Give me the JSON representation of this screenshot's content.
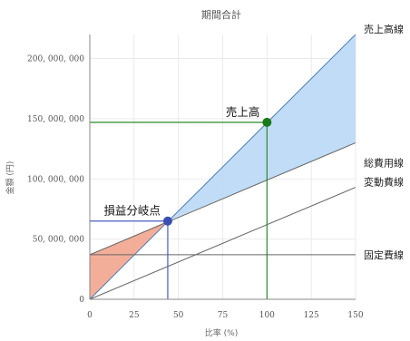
{
  "chart_data": {
    "type": "line",
    "title": "期間合計",
    "xlabel": "比率 (%)",
    "ylabel": "金額 (円)",
    "xlim": [
      0,
      150
    ],
    "ylim": [
      0,
      220000000
    ],
    "x_ticks": [
      0,
      25,
      50,
      75,
      100,
      125,
      150
    ],
    "x_tick_labels": [
      "0",
      "25",
      "50",
      "75",
      "100",
      "125",
      "150"
    ],
    "y_ticks": [
      0,
      50000000,
      100000000,
      150000000,
      200000000
    ],
    "y_tick_labels": [
      "0",
      "50, 000, 000",
      "100, 000, 000",
      "150, 000, 000",
      "200, 000, 000"
    ],
    "grid": true,
    "series": [
      {
        "name": "売上高線",
        "x": [
          0,
          150
        ],
        "y": [
          0,
          220000000
        ],
        "color": "#4d79b5"
      },
      {
        "name": "総費用線",
        "x": [
          0,
          150
        ],
        "y": [
          37000000,
          130000000
        ],
        "color": "#666666"
      },
      {
        "name": "変動費線",
        "x": [
          0,
          150
        ],
        "y": [
          0,
          93000000
        ],
        "color": "#666666"
      },
      {
        "name": "固定費線",
        "x": [
          0,
          150
        ],
        "y": [
          37000000,
          37000000
        ],
        "color": "#666666"
      }
    ],
    "points": [
      {
        "label": "損益分岐点",
        "x": 44,
        "y": 65000000,
        "color": "#3a4fb0",
        "guide_color": "#4a5bc0"
      },
      {
        "label": "売上高",
        "x": 100,
        "y": 147000000,
        "color": "#1a7a1a",
        "guide_color": "#2a8a2a"
      }
    ],
    "regions": [
      {
        "kind": "loss",
        "color": "#f2a58e"
      },
      {
        "kind": "profit",
        "color": "#b9d8f5"
      }
    ]
  }
}
